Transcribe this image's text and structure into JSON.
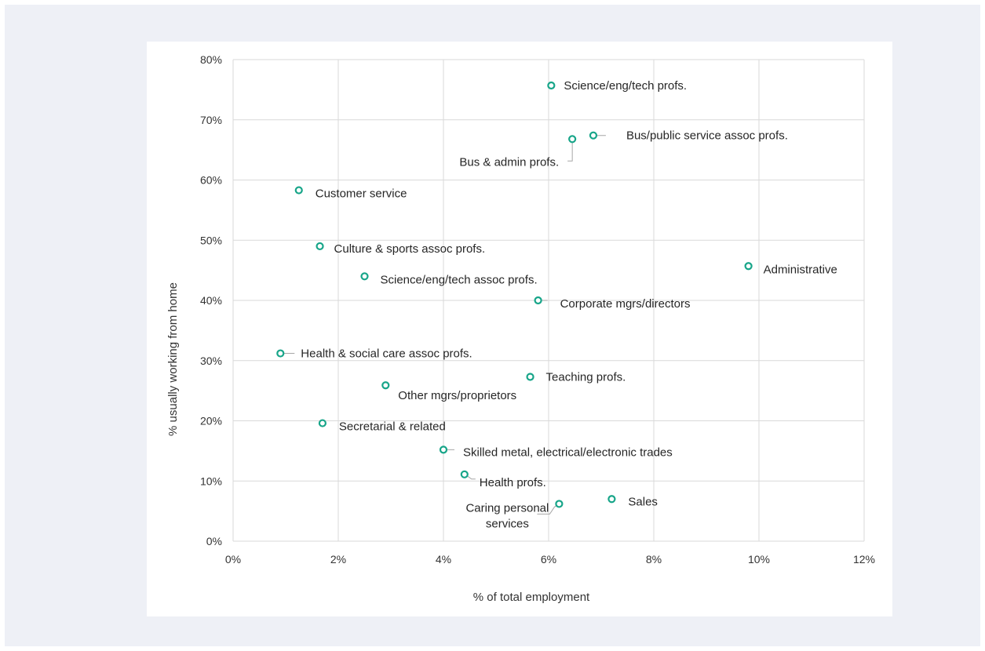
{
  "chart_data": {
    "type": "scatter",
    "xlabel": "% of total employment",
    "ylabel": "% usually working from home",
    "xlim": [
      0,
      12
    ],
    "ylim": [
      0,
      80
    ],
    "x_ticks": [
      "0%",
      "2%",
      "4%",
      "6%",
      "8%",
      "10%",
      "12%"
    ],
    "y_ticks": [
      "0%",
      "10%",
      "20%",
      "30%",
      "40%",
      "50%",
      "60%",
      "70%",
      "80%"
    ],
    "grid": true,
    "marker_color": "#17a589",
    "points": [
      {
        "label": "Science/eng/tech profs.",
        "x": 6.05,
        "y": 75.7
      },
      {
        "label": "Bus/public service assoc profs.",
        "x": 6.85,
        "y": 67.4
      },
      {
        "label": "Bus & admin profs.",
        "x": 6.45,
        "y": 66.8
      },
      {
        "label": "Customer service",
        "x": 1.25,
        "y": 58.3
      },
      {
        "label": "Culture & sports assoc profs.",
        "x": 1.65,
        "y": 49.0
      },
      {
        "label": "Administrative",
        "x": 9.8,
        "y": 45.7
      },
      {
        "label": "Science/eng/tech assoc profs.",
        "x": 2.5,
        "y": 44.0
      },
      {
        "label": "Corporate mgrs/directors",
        "x": 5.8,
        "y": 40.0
      },
      {
        "label": "Health & social care assoc profs.",
        "x": 0.9,
        "y": 31.2
      },
      {
        "label": "Teaching profs.",
        "x": 5.65,
        "y": 27.3
      },
      {
        "label": "Other mgrs/proprietors",
        "x": 2.9,
        "y": 25.9
      },
      {
        "label": "Secretarial & related",
        "x": 1.7,
        "y": 19.6
      },
      {
        "label": "Skilled metal, electrical/electronic trades",
        "x": 4.0,
        "y": 15.2
      },
      {
        "label": "Health profs.",
        "x": 4.4,
        "y": 11.1
      },
      {
        "label": "Sales",
        "x": 7.2,
        "y": 7.0
      },
      {
        "label": "Caring personal services",
        "x": 6.2,
        "y": 6.2
      }
    ]
  }
}
